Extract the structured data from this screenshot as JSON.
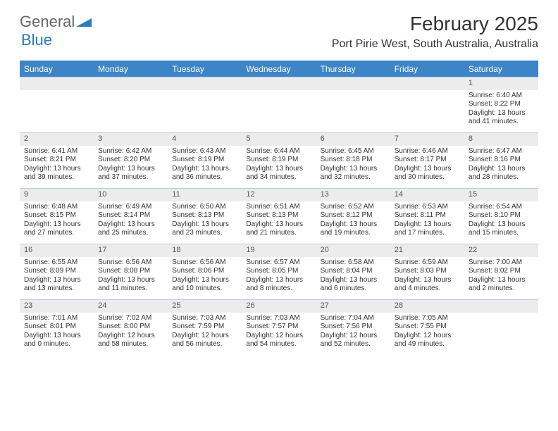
{
  "logo": {
    "text1": "General",
    "text2": "Blue"
  },
  "title": "February 2025",
  "location": "Port Pirie West, South Australia, Australia",
  "colors": {
    "header_bg": "#3d85c6",
    "header_border": "#2b7bbd",
    "week_border": "#b9cfe3",
    "daynum_bg": "#ececec",
    "text": "#333333",
    "muted": "#555555"
  },
  "fonts": {
    "title_size_pt": 21,
    "location_size_pt": 12,
    "dayhead_size_pt": 9,
    "cell_size_pt": 7.5
  },
  "days": [
    "Sunday",
    "Monday",
    "Tuesday",
    "Wednesday",
    "Thursday",
    "Friday",
    "Saturday"
  ],
  "weeks": [
    [
      {
        "n": "",
        "sr": "",
        "ss": "",
        "dl": ""
      },
      {
        "n": "",
        "sr": "",
        "ss": "",
        "dl": ""
      },
      {
        "n": "",
        "sr": "",
        "ss": "",
        "dl": ""
      },
      {
        "n": "",
        "sr": "",
        "ss": "",
        "dl": ""
      },
      {
        "n": "",
        "sr": "",
        "ss": "",
        "dl": ""
      },
      {
        "n": "",
        "sr": "",
        "ss": "",
        "dl": ""
      },
      {
        "n": "1",
        "sr": "Sunrise: 6:40 AM",
        "ss": "Sunset: 8:22 PM",
        "dl": "Daylight: 13 hours and 41 minutes."
      }
    ],
    [
      {
        "n": "2",
        "sr": "Sunrise: 6:41 AM",
        "ss": "Sunset: 8:21 PM",
        "dl": "Daylight: 13 hours and 39 minutes."
      },
      {
        "n": "3",
        "sr": "Sunrise: 6:42 AM",
        "ss": "Sunset: 8:20 PM",
        "dl": "Daylight: 13 hours and 37 minutes."
      },
      {
        "n": "4",
        "sr": "Sunrise: 6:43 AM",
        "ss": "Sunset: 8:19 PM",
        "dl": "Daylight: 13 hours and 36 minutes."
      },
      {
        "n": "5",
        "sr": "Sunrise: 6:44 AM",
        "ss": "Sunset: 8:19 PM",
        "dl": "Daylight: 13 hours and 34 minutes."
      },
      {
        "n": "6",
        "sr": "Sunrise: 6:45 AM",
        "ss": "Sunset: 8:18 PM",
        "dl": "Daylight: 13 hours and 32 minutes."
      },
      {
        "n": "7",
        "sr": "Sunrise: 6:46 AM",
        "ss": "Sunset: 8:17 PM",
        "dl": "Daylight: 13 hours and 30 minutes."
      },
      {
        "n": "8",
        "sr": "Sunrise: 6:47 AM",
        "ss": "Sunset: 8:16 PM",
        "dl": "Daylight: 13 hours and 28 minutes."
      }
    ],
    [
      {
        "n": "9",
        "sr": "Sunrise: 6:48 AM",
        "ss": "Sunset: 8:15 PM",
        "dl": "Daylight: 13 hours and 27 minutes."
      },
      {
        "n": "10",
        "sr": "Sunrise: 6:49 AM",
        "ss": "Sunset: 8:14 PM",
        "dl": "Daylight: 13 hours and 25 minutes."
      },
      {
        "n": "11",
        "sr": "Sunrise: 6:50 AM",
        "ss": "Sunset: 8:13 PM",
        "dl": "Daylight: 13 hours and 23 minutes."
      },
      {
        "n": "12",
        "sr": "Sunrise: 6:51 AM",
        "ss": "Sunset: 8:13 PM",
        "dl": "Daylight: 13 hours and 21 minutes."
      },
      {
        "n": "13",
        "sr": "Sunrise: 6:52 AM",
        "ss": "Sunset: 8:12 PM",
        "dl": "Daylight: 13 hours and 19 minutes."
      },
      {
        "n": "14",
        "sr": "Sunrise: 6:53 AM",
        "ss": "Sunset: 8:11 PM",
        "dl": "Daylight: 13 hours and 17 minutes."
      },
      {
        "n": "15",
        "sr": "Sunrise: 6:54 AM",
        "ss": "Sunset: 8:10 PM",
        "dl": "Daylight: 13 hours and 15 minutes."
      }
    ],
    [
      {
        "n": "16",
        "sr": "Sunrise: 6:55 AM",
        "ss": "Sunset: 8:09 PM",
        "dl": "Daylight: 13 hours and 13 minutes."
      },
      {
        "n": "17",
        "sr": "Sunrise: 6:56 AM",
        "ss": "Sunset: 8:08 PM",
        "dl": "Daylight: 13 hours and 11 minutes."
      },
      {
        "n": "18",
        "sr": "Sunrise: 6:56 AM",
        "ss": "Sunset: 8:06 PM",
        "dl": "Daylight: 13 hours and 10 minutes."
      },
      {
        "n": "19",
        "sr": "Sunrise: 6:57 AM",
        "ss": "Sunset: 8:05 PM",
        "dl": "Daylight: 13 hours and 8 minutes."
      },
      {
        "n": "20",
        "sr": "Sunrise: 6:58 AM",
        "ss": "Sunset: 8:04 PM",
        "dl": "Daylight: 13 hours and 6 minutes."
      },
      {
        "n": "21",
        "sr": "Sunrise: 6:59 AM",
        "ss": "Sunset: 8:03 PM",
        "dl": "Daylight: 13 hours and 4 minutes."
      },
      {
        "n": "22",
        "sr": "Sunrise: 7:00 AM",
        "ss": "Sunset: 8:02 PM",
        "dl": "Daylight: 13 hours and 2 minutes."
      }
    ],
    [
      {
        "n": "23",
        "sr": "Sunrise: 7:01 AM",
        "ss": "Sunset: 8:01 PM",
        "dl": "Daylight: 13 hours and 0 minutes."
      },
      {
        "n": "24",
        "sr": "Sunrise: 7:02 AM",
        "ss": "Sunset: 8:00 PM",
        "dl": "Daylight: 12 hours and 58 minutes."
      },
      {
        "n": "25",
        "sr": "Sunrise: 7:03 AM",
        "ss": "Sunset: 7:59 PM",
        "dl": "Daylight: 12 hours and 56 minutes."
      },
      {
        "n": "26",
        "sr": "Sunrise: 7:03 AM",
        "ss": "Sunset: 7:57 PM",
        "dl": "Daylight: 12 hours and 54 minutes."
      },
      {
        "n": "27",
        "sr": "Sunrise: 7:04 AM",
        "ss": "Sunset: 7:56 PM",
        "dl": "Daylight: 12 hours and 52 minutes."
      },
      {
        "n": "28",
        "sr": "Sunrise: 7:05 AM",
        "ss": "Sunset: 7:55 PM",
        "dl": "Daylight: 12 hours and 49 minutes."
      },
      {
        "n": "",
        "sr": "",
        "ss": "",
        "dl": ""
      }
    ]
  ]
}
